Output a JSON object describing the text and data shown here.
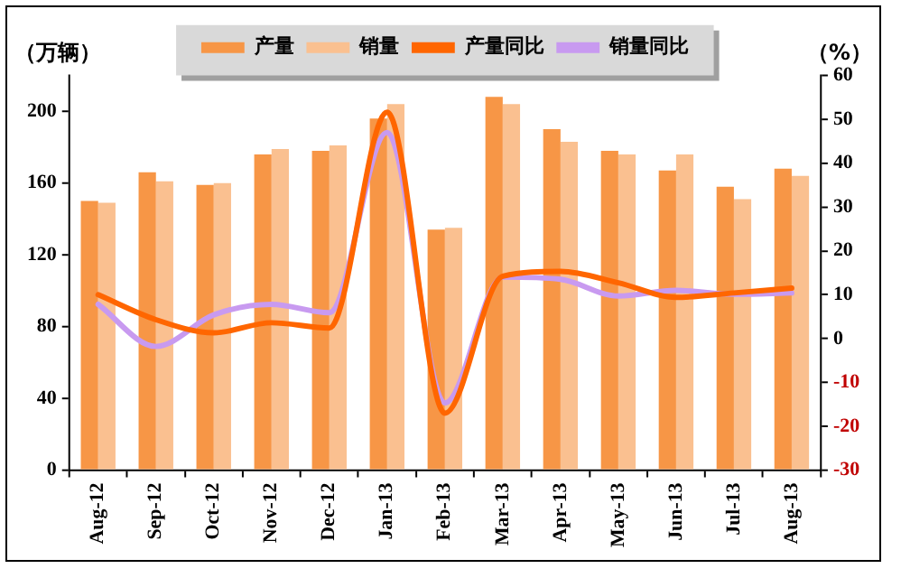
{
  "chart_data": {
    "type": "bar",
    "ylabel": "（万辆）",
    "y2label": "（%）",
    "categories": [
      "Aug-12",
      "Sep-12",
      "Oct-12",
      "Nov-12",
      "Dec-12",
      "Jan-13",
      "Feb-13",
      "Mar-13",
      "Apr-13",
      "May-13",
      "Jun-13",
      "Jul-13",
      "Aug-13"
    ],
    "series": [
      {
        "name": "产量",
        "color": "#f79646",
        "values": [
          150,
          166,
          159,
          176,
          178,
          196,
          134,
          208,
          190,
          178,
          167,
          158,
          168
        ]
      },
      {
        "name": "销量",
        "color": "#fac090",
        "values": [
          149,
          161,
          160,
          179,
          181,
          204,
          135,
          204,
          183,
          176,
          176,
          151,
          164
        ]
      },
      {
        "name": "产量同比",
        "type": "line",
        "axis": "y2",
        "color": "#ff6600",
        "values": [
          10,
          4.3,
          1.3,
          3.6,
          2.4,
          51.6,
          -17,
          14.2,
          15.3,
          12.7,
          9.4,
          10.4,
          11.5
        ]
      },
      {
        "name": "销量同比",
        "type": "line",
        "axis": "y2",
        "color": "#c89af0",
        "values": [
          7.8,
          -1.8,
          5.4,
          7.8,
          5.9,
          47,
          -14.7,
          14,
          13.5,
          9.7,
          11,
          10.1,
          10.4
        ]
      }
    ],
    "ylim": [
      0,
      220
    ],
    "yticks": [
      0,
      40,
      80,
      120,
      160,
      200
    ],
    "y2lim": [
      -30,
      60
    ],
    "y2ticks": [
      -30,
      -20,
      -10,
      0,
      10,
      20,
      30,
      40,
      50,
      60
    ],
    "grid": false,
    "legend": "top",
    "marker": "none",
    "line_style": "solid"
  }
}
